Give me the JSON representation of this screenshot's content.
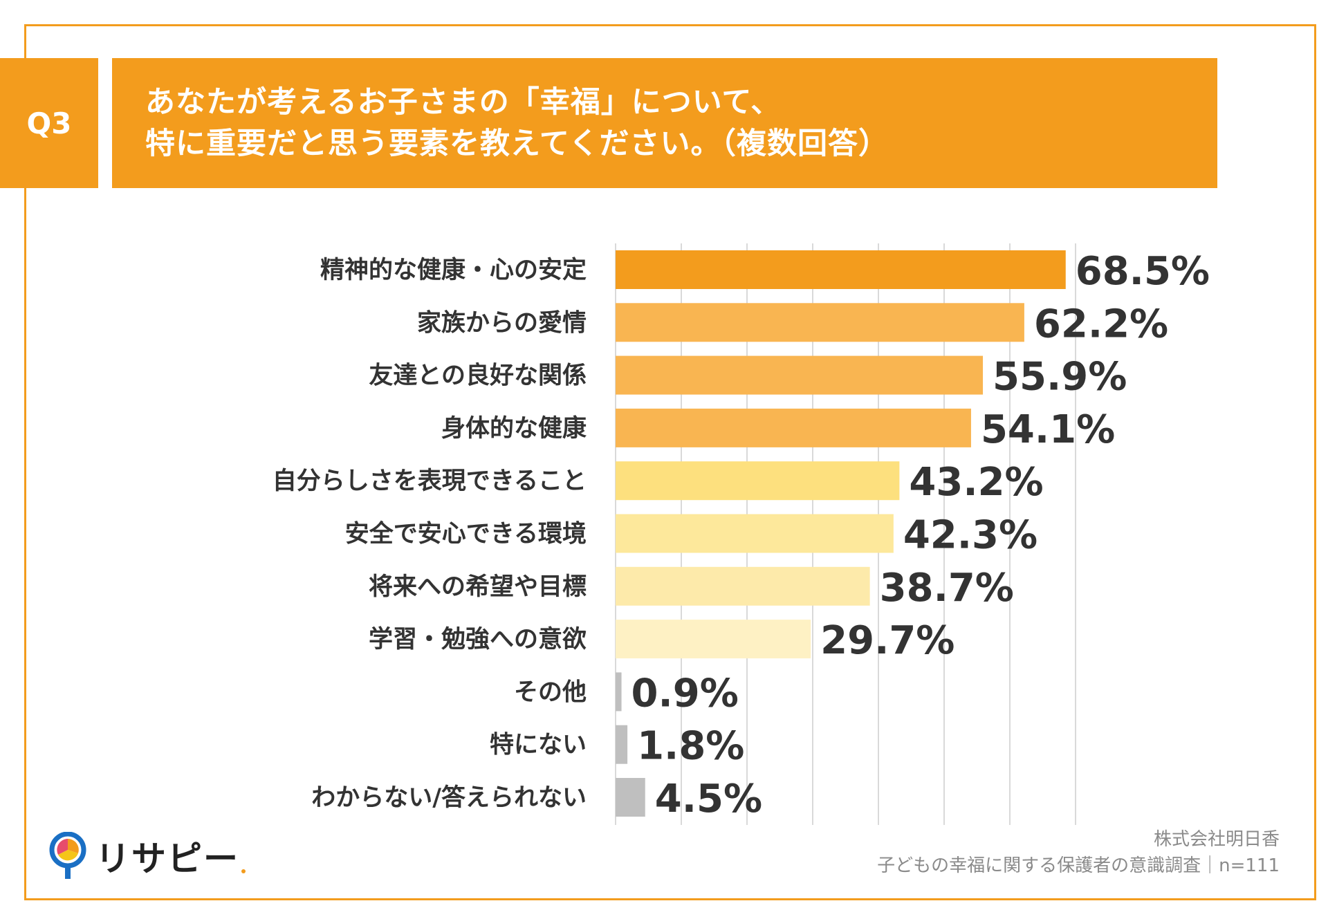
{
  "header": {
    "q_number": "Q3",
    "title_line1": "あなたが考えるお子さまの「幸福」について、",
    "title_line2": "特に重要だと思う要素を教えてください。（複数回答）"
  },
  "chart_data": {
    "type": "bar",
    "orientation": "horizontal",
    "categories": [
      "精神的な健康・心の安定",
      "家族からの愛情",
      "友達との良好な関係",
      "身体的な健康",
      "自分らしさを表現できること",
      "安全で安心できる環境",
      "将来への希望や目標",
      "学習・勉強への意欲",
      "その他",
      "特にない",
      "わからない/答えられない"
    ],
    "values": [
      68.5,
      62.2,
      55.9,
      54.1,
      43.2,
      42.3,
      38.7,
      29.7,
      0.9,
      1.8,
      4.5
    ],
    "value_labels": [
      "68.5%",
      "62.2%",
      "55.9%",
      "54.1%",
      "43.2%",
      "42.3%",
      "38.7%",
      "29.7%",
      "0.9%",
      "1.8%",
      "4.5%"
    ],
    "colors": [
      "#f39c1d",
      "#f9b551",
      "#f9b551",
      "#f9b551",
      "#fde07e",
      "#fde89b",
      "#fdeaaa",
      "#fef1c4",
      "#bfbfbf",
      "#bfbfbf",
      "#bfbfbf"
    ],
    "xlim": [
      0,
      100
    ],
    "grid": true,
    "gridline_step": 10,
    "unit": "%"
  },
  "footer": {
    "brand": "リサピー",
    "company": "株式会社明日香",
    "survey": "子どもの幸福に関する保護者の意識調査｜n=111"
  },
  "colors": {
    "accent": "#f39c1d",
    "text": "#333333",
    "source_text": "#8a8a8a"
  }
}
